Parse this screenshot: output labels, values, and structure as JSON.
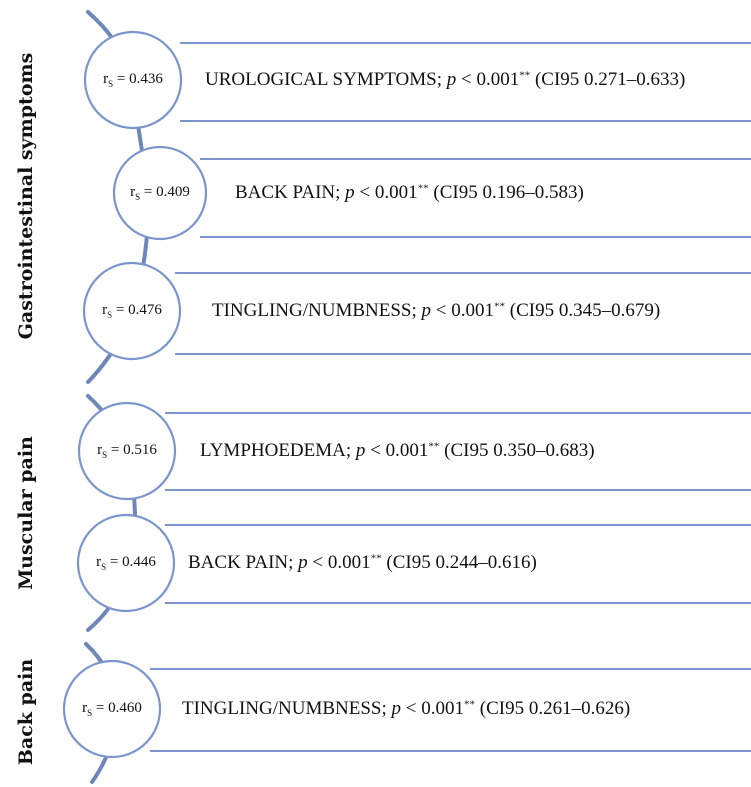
{
  "colors": {
    "line": "#7b96cc",
    "spine": "#6f86b8",
    "text": "#111111"
  },
  "groups": [
    {
      "label": "Gastrointestinal symptoms",
      "rows": [
        {
          "rs_symbol": "r",
          "rs_sub": "S",
          "rs_text": " = 0.436",
          "name": "UROLOGICAL SYMPTOMS",
          "p_symbol": "p",
          "p_value": " < 0.001",
          "sig": "**",
          "ci": " (CI95 0.271–0.633)"
        },
        {
          "rs_symbol": "r",
          "rs_sub": "S",
          "rs_text": " = 0.409",
          "name": "BACK PAIN",
          "p_symbol": "p",
          "p_value": " < 0.001",
          "sig": "**",
          "ci": " (CI95 0.196–0.583)"
        },
        {
          "rs_symbol": "r",
          "rs_sub": "S",
          "rs_text": " = 0.476",
          "name": "TINGLING/NUMBNESS",
          "p_symbol": "p",
          "p_value": " < 0.001",
          "sig": "**",
          "ci": " (CI95 0.345–0.679)"
        }
      ]
    },
    {
      "label": "Muscular pain",
      "rows": [
        {
          "rs_symbol": "r",
          "rs_sub": "S",
          "rs_text": " = 0.516",
          "name": "LYMPHOEDEMA",
          "p_symbol": "p",
          "p_value": " < 0.001",
          "sig": "**",
          "ci": " (CI95 0.350–0.683)"
        },
        {
          "rs_symbol": "r",
          "rs_sub": "S",
          "rs_text": " = 0.446",
          "name": "BACK PAIN",
          "p_symbol": "p",
          "p_value": " < 0.001",
          "sig": "**",
          "ci": " (CI95 0.244–0.616)"
        }
      ]
    },
    {
      "label": "Back pain",
      "rows": [
        {
          "rs_symbol": "r",
          "rs_sub": "S",
          "rs_text": " = 0.460",
          "name": "TINGLING/NUMBNESS",
          "p_symbol": "p",
          "p_value": " < 0.001",
          "sig": "**",
          "ci": " (CI95 0.261–0.626)"
        }
      ]
    }
  ]
}
